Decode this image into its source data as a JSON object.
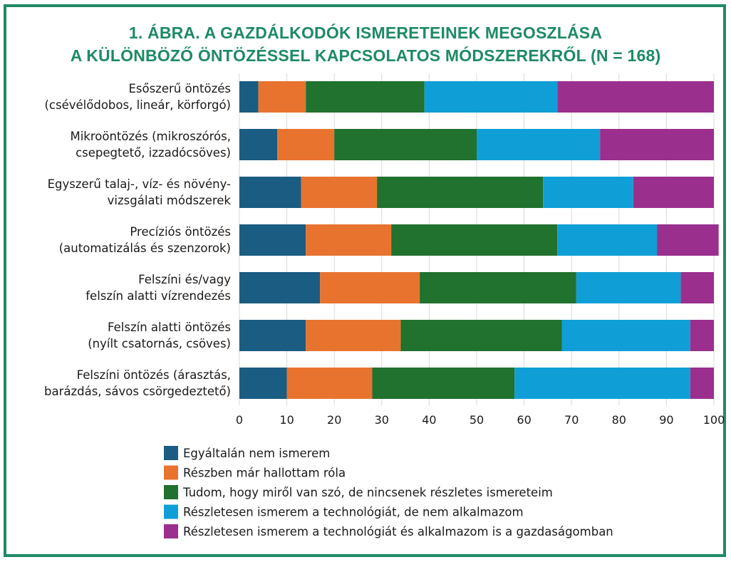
{
  "chart_data": {
    "type": "bar",
    "orientation": "horizontal",
    "stacked": true,
    "title": [
      "1. ÁBRA. A GAZDÁLKODÓK ISMERETEINEK MEGOSZLÁSA",
      "A KÜLÖNBÖZŐ ÖNTÖZÉSSEL KAPCSOLATOS MÓDSZEREKRŐL (N = 168)"
    ],
    "categories": [
      [
        "Esőszerű öntözés",
        "(csévélődobos, lineár, körforgó)"
      ],
      [
        "Mikroöntözés (mikroszórós,",
        "csepegtető, izzadócsöves)"
      ],
      [
        "Egyszerű talaj-, víz- és növény-",
        "vizsgálati módszerek"
      ],
      [
        "Precíziós öntözés",
        "(automatizálás és szenzorok)"
      ],
      [
        "Felszíni és/vagy",
        "felszín alatti vízrendezés"
      ],
      [
        "Felszín alatti öntözés",
        "(nyílt csatornás, csöves)"
      ],
      [
        "Felszíni öntözés (árasztás,",
        "barázdás, sávos csörgedeztető)"
      ]
    ],
    "series": [
      {
        "name": "Egyáltalán nem ismerem",
        "color": "#1a5c82",
        "values": [
          4,
          8,
          13,
          14,
          17,
          14,
          10
        ]
      },
      {
        "name": "Részben már hallottam róla",
        "color": "#e8732f",
        "values": [
          10,
          12,
          16,
          18,
          21,
          20,
          18
        ]
      },
      {
        "name": "Tudom, hogy miről van szó, de nincsenek részletes ismereteim",
        "color": "#21712f",
        "values": [
          25,
          30,
          35,
          35,
          33,
          34,
          30
        ]
      },
      {
        "name": "Részletesen ismerem a technológiát, de nem alkalmazom",
        "color": "#0f9fd6",
        "values": [
          28,
          26,
          19,
          21,
          22,
          27,
          37
        ]
      },
      {
        "name": "Részletesen ismerem a technológiát és alkalmazom is a gazdaságomban",
        "color": "#9b2f8e",
        "values": [
          33,
          24,
          17,
          13,
          7,
          5,
          5
        ]
      }
    ],
    "xlim": [
      0,
      100
    ],
    "xticks": [
      0,
      10,
      20,
      30,
      40,
      50,
      60,
      70,
      80,
      90,
      100
    ],
    "grid": "vertical",
    "legend": "bottom"
  }
}
